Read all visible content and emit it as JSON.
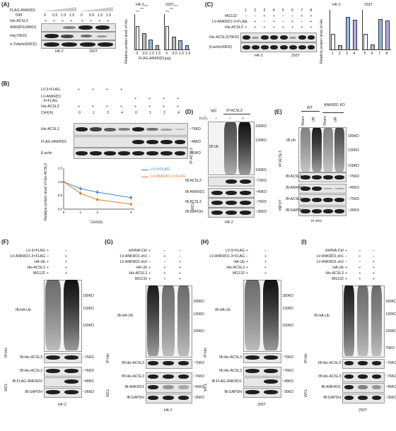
{
  "panels": {
    "A": "(A)",
    "B": "(B)",
    "C": "(C)",
    "D": "(D)",
    "E": "(E)",
    "F": "(F)",
    "G": "(G)",
    "H": "(H)",
    "I": "(I)"
  },
  "A": {
    "flag_label": "FLAG-ANKRD1",
    "ug": "(μg)",
    "his_acsl3": "His-ACSL3",
    "doses": [
      "0",
      "0.5",
      "1.0",
      "1.5",
      "0",
      "0.5",
      "1.0",
      "1.5"
    ],
    "plus": "+",
    "rows": [
      "ANKRD1(48KD)",
      "His(76KD)",
      "α-Tubulin(55KD)"
    ],
    "cells": [
      "HK-2",
      "293T"
    ],
    "chart_ylabel": "Relative protein level of His",
    "chart_xlabel": "FLAG-ANKRD1(μg)",
    "sig": [
      "***",
      "***",
      "***",
      "***",
      "***",
      "***"
    ]
  },
  "B": {
    "rows_top": [
      "LV-3×FLAG",
      "LV-ANKRD1",
      "-3×FLAG",
      "His-ACSL3",
      "CHX(h)"
    ],
    "chx": [
      "0",
      "1",
      "2",
      "4",
      "0",
      "1",
      "2",
      "4"
    ],
    "blot_rows": [
      "His-ACSL3",
      "FLAG-ANKRD1",
      "β-actin"
    ],
    "sizes": [
      "~76KD",
      "~48KD",
      "~43KD"
    ],
    "legend": [
      "LV-3×FLAG",
      "LV-ANKRD1-3×FLAG"
    ],
    "ylabel": "Relative protein level of His-ACSL3",
    "xlabel": "CHX(h)"
  },
  "C": {
    "lanes": [
      "1",
      "2",
      "3",
      "4",
      "5",
      "6",
      "7",
      "8"
    ],
    "rows_top": [
      "MG132",
      "LV-ANKRD1-3×FLAG",
      "His-ACSL3"
    ],
    "blot_rows": [
      "His-ACSL3(76KD)",
      "β-actin(43KD)"
    ],
    "cells": [
      "HK-2",
      "293T"
    ],
    "chart_ylabel": "Relative protein level of His"
  },
  "D": {
    "igg": "IgG",
    "ip": "IP:ACSL3",
    "h2o2": "H₂O₂",
    "side": "IP:ACSL3",
    "wcl": "WCL",
    "blot_rows": [
      "IB:Ub",
      "IB:ACSL3",
      "IB:ANKRD1",
      "IB:ACSL3",
      "IB:GAPDH"
    ],
    "sizes": [
      "180KD",
      "130KD",
      "100KD",
      "~75KD",
      "~45KD",
      "~75KD",
      "~36KD"
    ],
    "cell": "HK-2"
  },
  "E": {
    "wt": "WT",
    "kd": "ANKRD1 KD",
    "lanes": [
      "Sham",
      "I/R",
      "Sham",
      "I/R"
    ],
    "side": "IP:ACSL3",
    "input": "INPUT",
    "blot_rows": [
      "IB:Ub",
      "IB:ACSL3",
      "IB:ANKRD1",
      "IB:ACSL3",
      "IB:GAPDH"
    ],
    "sizes": [
      "180KD",
      "130KD",
      "100KD",
      "~75KD",
      "~45KD",
      "~75KD",
      "~36KD"
    ],
    "caption": "in vivo"
  },
  "F": {
    "rows_top": [
      "LV-3×FLAG",
      "LV-ANKRD1-3×FLAG",
      "HA-Ub",
      "His-ACSL3",
      "MG132"
    ],
    "side": "IP:His",
    "wcl": "WCL",
    "blot_rows": [
      "IB:HA-Ub",
      "IB:His-ACSL3",
      "IB:His-ACSL3",
      "IB:FLAG-ANKRD1",
      "IB:GAPDH"
    ],
    "sizes": [
      "180KD",
      "130KD",
      "100KD",
      "~76KD",
      "~76KD",
      "~48KD",
      "~36KD"
    ],
    "cell": "HK-2"
  },
  "G": {
    "rows_top": [
      "shRNA-Ctrl",
      "LV-ANKRD1-sh1",
      "LV-ANKRD1-sh2",
      "HA-Ub",
      "His-ACSL3",
      "MG132"
    ],
    "side": "IP:His",
    "wcl": "WCL",
    "blot_rows": [
      "IB:HA-Ub",
      "IB:His-ACSL3",
      "IB:His-ACSL3",
      "IB:ANKRD1",
      "IB:GAPDH"
    ],
    "sizes": [
      "180KD",
      "130KD",
      "100KD",
      "~76KD",
      "~76KD",
      "~45KD",
      "~36KD"
    ],
    "cell": "HK-2"
  },
  "H": {
    "rows_top": [
      "LV-3×FLAG",
      "LV-ANKRD1-3×FLAG",
      "HA-Ub",
      "His-ACSL3",
      "MG132"
    ],
    "side": "IP:His",
    "wcl": "WCL",
    "blot_rows": [
      "IB:HA-Ub",
      "IB:His-ACSL3",
      "IB:His-ACSL3",
      "IB:FLAG-ANKRD1",
      "IB:GAPDH"
    ],
    "sizes": [
      "180KD",
      "130KD",
      "100KD",
      "~76KD",
      "~76KD",
      "~48KD",
      "~36KD"
    ],
    "cell": "293T"
  },
  "I": {
    "rows_top": [
      "shRNA-Ctrl",
      "LV-ANKRD1-sh1",
      "LV-ANKRD1-sh2",
      "HA-Ub",
      "His-ACSL3",
      "MG132"
    ],
    "side": "IP:His",
    "wcl": "WCL",
    "blot_rows": [
      "IB:HA-Ub",
      "IB:His-ACSL3",
      "IB:His-ACSL3",
      "IB:ANKRD1",
      "IB:GAPDH"
    ],
    "sizes": [
      "180KD",
      "130KD",
      "100KD",
      "70KD",
      "~76KD",
      "~76KD",
      "~45KD",
      "~36KD"
    ],
    "cell": "293T"
  },
  "chart_data": [
    {
      "type": "bar",
      "panel": "A",
      "title": "HK-2",
      "categories": [
        "0",
        "0.5",
        "1.0",
        "1.5"
      ],
      "values": [
        1.0,
        0.72,
        0.45,
        0.22
      ],
      "xlabel": "FLAG-ANKRD1(μg)",
      "ylabel": "Relative protein level of His",
      "ylim": [
        0,
        1.5
      ]
    },
    {
      "type": "bar",
      "panel": "A",
      "title": "293T",
      "categories": [
        "0",
        "0.5",
        "1.0",
        "1.5"
      ],
      "values": [
        1.0,
        0.55,
        0.42,
        0.2
      ],
      "xlabel": "FLAG-ANKRD1(μg)",
      "ylabel": "Relative protein level of His",
      "ylim": [
        0,
        1.5
      ]
    },
    {
      "type": "line",
      "panel": "B",
      "x": [
        0,
        1,
        2,
        4
      ],
      "series": [
        {
          "name": "LV-3×FLAG",
          "values": [
            1.0,
            0.75,
            0.62,
            0.42
          ],
          "color": "#3a86d4"
        },
        {
          "name": "LV-ANKRD1-3×FLAG",
          "values": [
            1.0,
            0.58,
            0.35,
            0.18
          ],
          "color": "#e8792b"
        }
      ],
      "xlabel": "CHX(h)",
      "ylabel": "Relative protein level of His-ACSL3",
      "ylim": [
        0,
        1.5
      ]
    },
    {
      "type": "bar",
      "panel": "C",
      "title": "HK-2",
      "categories": [
        "1",
        "2",
        "3",
        "4"
      ],
      "values": [
        1.0,
        0.3,
        2.05,
        1.9
      ],
      "ylabel": "Relative protein level of His",
      "ylim": [
        0,
        2.5
      ]
    },
    {
      "type": "bar",
      "panel": "C",
      "title": "293T",
      "categories": [
        "5",
        "6",
        "7",
        "8"
      ],
      "values": [
        1.0,
        0.35,
        1.95,
        1.85
      ],
      "ylabel": "Relative protein level of His",
      "ylim": [
        0,
        2.5
      ]
    }
  ]
}
